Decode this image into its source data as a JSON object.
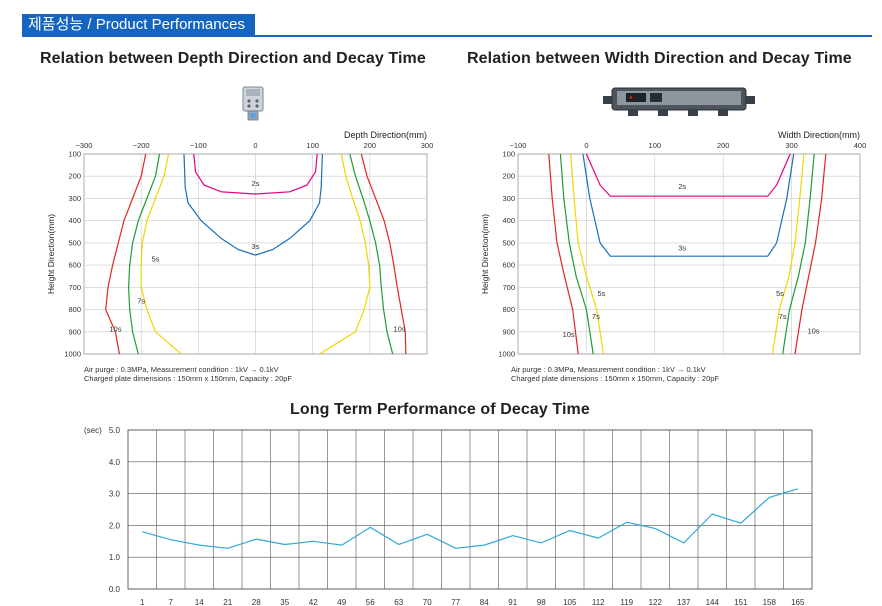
{
  "header": {
    "title_ko": "제품성능",
    "title_sep": " / ",
    "title_en": "Product Performances"
  },
  "colors": {
    "brand": "#1565c0",
    "c2s": "#e5007e",
    "c3s": "#1a6fb8",
    "c5s": "#f2d500",
    "c7s": "#1f9a3a",
    "c10s": "#e1261c",
    "trend": "#2fa8d8"
  },
  "icons": {
    "depth_device": "ionizer-nozzle-icon",
    "width_device": "ionizer-bar-icon"
  },
  "chart_data": [
    {
      "type": "line",
      "title": "Relation between Depth Direction and Decay Time",
      "xlabel": "Depth Direction(mm)",
      "ylabel": "Height Direction(mm)",
      "xlim": [
        -300,
        300
      ],
      "ylim": [
        100,
        1000
      ],
      "x_ticks": [
        -300,
        -200,
        -100,
        0,
        100,
        200,
        300
      ],
      "y_ticks": [
        100,
        200,
        300,
        400,
        500,
        600,
        700,
        800,
        900,
        1000
      ],
      "x_tick_labels": [
        "−300",
        "−200",
        "−100",
        "0",
        "100",
        "200",
        "300"
      ],
      "y_tick_labels": [
        "100",
        "200",
        "300",
        "400",
        "500",
        "600",
        "700",
        "800",
        "900",
        "1000"
      ],
      "grid": true,
      "notes": [
        "Air purge : 0.3MPa, Measurement condition : 1kV → 0.1kV",
        "Charged plate dimensions : 150mm x 150mm, Capacity : 20pF"
      ],
      "series": [
        {
          "name": "2s",
          "color": "#e5007e",
          "label_at": [
            0,
            230
          ],
          "points": [
            [
              -108,
              100
            ],
            [
              -105,
              180
            ],
            [
              -90,
              240
            ],
            [
              -60,
              270
            ],
            [
              0,
              280
            ],
            [
              60,
              270
            ],
            [
              90,
              240
            ],
            [
              105,
              180
            ],
            [
              108,
              100
            ]
          ]
        },
        {
          "name": "3s",
          "color": "#1a6fb8",
          "label_at": [
            0,
            515
          ],
          "points": [
            [
              -125,
              100
            ],
            [
              -123,
              250
            ],
            [
              -118,
              320
            ],
            [
              -95,
              400
            ],
            [
              -60,
              480
            ],
            [
              -30,
              530
            ],
            [
              0,
              555
            ],
            [
              30,
              530
            ],
            [
              60,
              480
            ],
            [
              95,
              400
            ],
            [
              112,
              320
            ],
            [
              115,
              250
            ],
            [
              117,
              100
            ]
          ]
        },
        {
          "name": "5s",
          "color": "#f2d500",
          "label_at": [
            -175,
            570
          ],
          "points": [
            [
              -152,
              100
            ],
            [
              -160,
              200
            ],
            [
              -175,
              300
            ],
            [
              -190,
              400
            ],
            [
              -198,
              500
            ],
            [
              -200,
              600
            ],
            [
              -200,
              700
            ],
            [
              -190,
              800
            ],
            [
              -175,
              900
            ],
            [
              -130,
              1000
            ]
          ],
          "points_right": [
            [
              150,
              100
            ],
            [
              158,
              200
            ],
            [
              170,
              300
            ],
            [
              183,
              400
            ],
            [
              192,
              500
            ],
            [
              198,
              600
            ],
            [
              200,
              700
            ],
            [
              190,
              800
            ],
            [
              175,
              900
            ],
            [
              112,
              1000
            ]
          ]
        },
        {
          "name": "7s",
          "color": "#1f9a3a",
          "label_at": [
            -200,
            760
          ],
          "points": [
            [
              -168,
              100
            ],
            [
              -175,
              200
            ],
            [
              -190,
              300
            ],
            [
              -205,
              400
            ],
            [
              -215,
              500
            ],
            [
              -220,
              600
            ],
            [
              -222,
              700
            ],
            [
              -220,
              800
            ],
            [
              -215,
              900
            ],
            [
              -205,
              1000
            ]
          ],
          "points_right": [
            [
              165,
              100
            ],
            [
              175,
              200
            ],
            [
              188,
              300
            ],
            [
              200,
              400
            ],
            [
              210,
              500
            ],
            [
              217,
              600
            ],
            [
              220,
              700
            ],
            [
              224,
              800
            ],
            [
              230,
              900
            ],
            [
              240,
              1000
            ]
          ]
        },
        {
          "name": "10s",
          "color": "#e1261c",
          "label_at": [
            -245,
            885
          ],
          "points": [
            [
              -192,
              100
            ],
            [
              -200,
              200
            ],
            [
              -215,
              300
            ],
            [
              -230,
              400
            ],
            [
              -240,
              500
            ],
            [
              -250,
              600
            ],
            [
              -258,
              700
            ],
            [
              -262,
              800
            ],
            [
              -245,
              900
            ],
            [
              -238,
              1000
            ]
          ],
          "points_right": [
            [
              185,
              100
            ],
            [
              195,
              200
            ],
            [
              210,
              300
            ],
            [
              225,
              400
            ],
            [
              235,
              500
            ],
            [
              242,
              600
            ],
            [
              248,
              700
            ],
            [
              255,
              800
            ],
            [
              262,
              900
            ],
            [
              263,
              1000
            ]
          ],
          "label_at_right": [
            252,
            885
          ]
        }
      ]
    },
    {
      "type": "line",
      "title": "Relation between Width Direction and Decay Time",
      "xlabel": "Width Direction(mm)",
      "ylabel": "Height Direction(mm)",
      "xlim": [
        -100,
        400
      ],
      "ylim": [
        100,
        1000
      ],
      "x_ticks": [
        -100,
        0,
        100,
        200,
        300,
        400
      ],
      "y_ticks": [
        100,
        200,
        300,
        400,
        500,
        600,
        700,
        800,
        900,
        1000
      ],
      "x_tick_labels": [
        "−100",
        "0",
        "100",
        "200",
        "300",
        "400"
      ],
      "y_tick_labels": [
        "100",
        "200",
        "300",
        "400",
        "500",
        "600",
        "700",
        "800",
        "900",
        "1000"
      ],
      "grid": true,
      "notes": [
        "Air purge : 0.3MPa, Measurement condition : 1kV → 0.1kV",
        "Charged plate dimensions : 150mm x 150mm, Capacity : 20pF"
      ],
      "series": [
        {
          "name": "2s",
          "color": "#e5007e",
          "label_at": [
            140,
            245
          ],
          "points": [
            [
              0,
              100
            ],
            [
              20,
              240
            ],
            [
              35,
              290
            ],
            [
              265,
              290
            ],
            [
              278,
              240
            ],
            [
              298,
              100
            ]
          ]
        },
        {
          "name": "3s",
          "color": "#1a6fb8",
          "label_at": [
            140,
            520
          ],
          "points": [
            [
              -5,
              100
            ],
            [
              5,
              300
            ],
            [
              20,
              500
            ],
            [
              35,
              560
            ],
            [
              265,
              560
            ],
            [
              278,
              500
            ],
            [
              293,
              300
            ],
            [
              303,
              100
            ]
          ]
        },
        {
          "name": "5s",
          "color": "#f2d500",
          "label_at": [
            22,
            725
          ],
          "label_at_right": [
            283,
            725
          ],
          "points": [
            [
              -23,
              100
            ],
            [
              -18,
              300
            ],
            [
              -12,
              500
            ],
            [
              0,
              650
            ],
            [
              15,
              800
            ],
            [
              25,
              1000
            ]
          ],
          "points_right": [
            [
              318,
              100
            ],
            [
              312,
              300
            ],
            [
              305,
              500
            ],
            [
              296,
              650
            ],
            [
              282,
              800
            ],
            [
              272,
              1000
            ]
          ]
        },
        {
          "name": "7s",
          "color": "#1f9a3a",
          "label_at": [
            14,
            830
          ],
          "label_at_right": [
            287,
            830
          ],
          "points": [
            [
              -38,
              100
            ],
            [
              -33,
              300
            ],
            [
              -25,
              500
            ],
            [
              -15,
              650
            ],
            [
              0,
              800
            ],
            [
              10,
              1000
            ]
          ],
          "points_right": [
            [
              333,
              100
            ],
            [
              327,
              300
            ],
            [
              320,
              500
            ],
            [
              310,
              650
            ],
            [
              297,
              800
            ],
            [
              287,
              1000
            ]
          ]
        },
        {
          "name": "10s",
          "color": "#e1261c",
          "label_at": [
            -26,
            910
          ],
          "label_at_right": [
            332,
            895
          ],
          "points": [
            [
              -55,
              100
            ],
            [
              -50,
              300
            ],
            [
              -43,
              500
            ],
            [
              -32,
              650
            ],
            [
              -20,
              800
            ],
            [
              -12,
              1000
            ]
          ],
          "points_right": [
            [
              350,
              100
            ],
            [
              344,
              300
            ],
            [
              335,
              500
            ],
            [
              325,
              650
            ],
            [
              315,
              800
            ],
            [
              305,
              1000
            ]
          ]
        }
      ]
    },
    {
      "type": "line",
      "title": "Long Term Performance of Decay Time",
      "ylabel": "(sec)",
      "xlabel": "",
      "categories": [
        "1",
        "7",
        "14",
        "21",
        "28",
        "35",
        "42",
        "49",
        "56",
        "63",
        "70",
        "77",
        "84",
        "91",
        "98",
        "105",
        "112",
        "119",
        "122",
        "137",
        "144",
        "151",
        "158",
        "165"
      ],
      "y_ticks": [
        0.0,
        1.0,
        2.0,
        3.0,
        4.0,
        5.0
      ],
      "y_tick_labels": [
        "0.0",
        "1.0",
        "2.0",
        "3.0",
        "4.0",
        "5.0"
      ],
      "ylim": [
        0,
        5
      ],
      "grid": true,
      "series": [
        {
          "color": "#2fa8d8",
          "values": [
            1.8,
            1.55,
            1.38,
            1.28,
            1.57,
            1.4,
            1.5,
            1.38,
            1.94,
            1.4,
            1.72,
            1.28,
            1.38,
            1.68,
            1.45,
            1.84,
            1.6,
            2.1,
            1.9,
            1.45,
            2.36,
            2.07,
            2.88,
            3.15
          ]
        }
      ]
    }
  ]
}
